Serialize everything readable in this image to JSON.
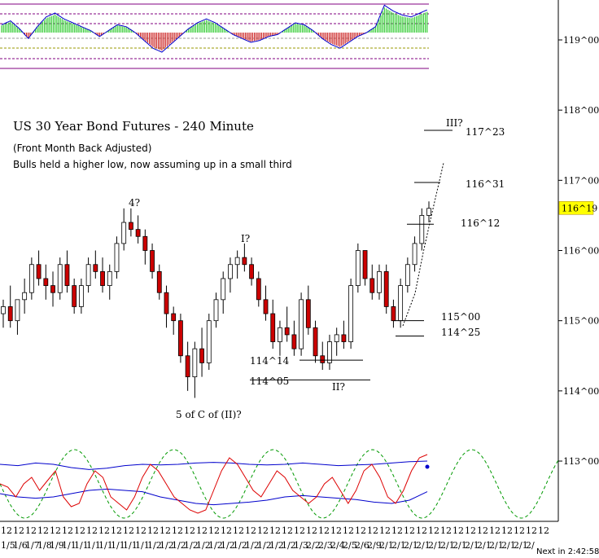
{
  "chart_data": {
    "type": "candlestick",
    "title": "US 30 Year Bond Futures - 240 Minute",
    "subtitle": "(Front Month Back Adjusted)",
    "commentary": "Bulls held a higher low, now assuming up in a small third",
    "y_axis": {
      "ticks": [
        "119^00",
        "118^00",
        "117^00",
        "116^00",
        "115^00",
        "114^00",
        "113^00"
      ],
      "tick_values": [
        119,
        118,
        117,
        116,
        115,
        114,
        113
      ],
      "ylim": [
        112.1,
        120.0
      ],
      "current_price_label": "116^19",
      "current_price": 116.594
    },
    "x_axis": {
      "month_labels": [
        "12",
        "12",
        "12",
        "12",
        "12",
        "12",
        "12",
        "12",
        "12",
        "12",
        "12",
        "12",
        "12",
        "12",
        "12",
        "12",
        "12",
        "12",
        "12",
        "12",
        "12",
        "12",
        "12",
        "12",
        "12",
        "12",
        "12",
        "12",
        "12",
        "12",
        "12",
        "12",
        "12",
        "12",
        "12",
        "12",
        "12",
        "12",
        "12",
        "12",
        "12",
        "12",
        "12",
        "12",
        "12"
      ],
      "day_labels": [
        "1/5",
        "1/6",
        "1/7",
        "1/8",
        "1/9",
        "1/1",
        "1/1",
        "1/1",
        "1/1",
        "1/1",
        "1/1",
        "1/1",
        "1/2",
        "1/2",
        "1/2",
        "1/2",
        "1/2",
        "1/2",
        "1/2",
        "1/2",
        "1/2",
        "1/2",
        "1/2",
        "1/2",
        "1/3",
        "2/2",
        "2/3",
        "2/4",
        "2/5",
        "2/6",
        "2/9",
        "2/1",
        "2/1",
        "2/1",
        "2/1",
        "2/1",
        "2/1",
        "2/1",
        "2/1",
        "2/1",
        "2/1",
        "2/1",
        "2/1",
        "2/"
      ],
      "status_text": "Next in 2:42:58"
    },
    "price_series": {
      "name": "OHLC",
      "candles": [
        [
          115.1,
          115.3,
          114.9,
          115.2
        ],
        [
          115.2,
          115.5,
          114.9,
          115.0
        ],
        [
          115.0,
          115.3,
          114.8,
          115.3
        ],
        [
          115.3,
          115.6,
          115.1,
          115.4
        ],
        [
          115.4,
          115.9,
          115.3,
          115.8
        ],
        [
          115.8,
          116.0,
          115.5,
          115.6
        ],
        [
          115.6,
          115.8,
          115.3,
          115.5
        ],
        [
          115.5,
          115.7,
          115.2,
          115.4
        ],
        [
          115.4,
          115.9,
          115.3,
          115.8
        ],
        [
          115.8,
          116.0,
          115.4,
          115.5
        ],
        [
          115.5,
          115.6,
          115.1,
          115.2
        ],
        [
          115.2,
          115.6,
          115.1,
          115.5
        ],
        [
          115.5,
          115.9,
          115.4,
          115.8
        ],
        [
          115.8,
          116.0,
          115.6,
          115.7
        ],
        [
          115.7,
          115.9,
          115.4,
          115.5
        ],
        [
          115.5,
          115.8,
          115.3,
          115.7
        ],
        [
          115.7,
          116.2,
          115.6,
          116.1
        ],
        [
          116.1,
          116.6,
          116.0,
          116.4
        ],
        [
          116.4,
          116.6,
          116.2,
          116.3
        ],
        [
          116.3,
          116.5,
          116.1,
          116.2
        ],
        [
          116.2,
          116.3,
          115.8,
          116.0
        ],
        [
          116.0,
          116.1,
          115.6,
          115.7
        ],
        [
          115.7,
          115.8,
          115.3,
          115.4
        ],
        [
          115.4,
          115.5,
          114.9,
          115.1
        ],
        [
          115.1,
          115.2,
          114.8,
          115.0
        ],
        [
          115.0,
          115.1,
          114.4,
          114.5
        ],
        [
          114.5,
          114.7,
          114.0,
          114.2
        ],
        [
          114.2,
          114.7,
          113.9,
          114.6
        ],
        [
          114.6,
          114.9,
          114.2,
          114.4
        ],
        [
          114.4,
          115.1,
          114.3,
          115.0
        ],
        [
          115.0,
          115.4,
          114.9,
          115.3
        ],
        [
          115.3,
          115.7,
          115.1,
          115.6
        ],
        [
          115.6,
          115.9,
          115.4,
          115.8
        ],
        [
          115.8,
          116.0,
          115.6,
          115.9
        ],
        [
          115.9,
          116.1,
          115.7,
          115.8
        ],
        [
          115.8,
          115.9,
          115.5,
          115.6
        ],
        [
          115.6,
          115.7,
          115.2,
          115.3
        ],
        [
          115.3,
          115.5,
          115.0,
          115.1
        ],
        [
          115.1,
          115.3,
          114.6,
          114.7
        ],
        [
          114.7,
          115.0,
          114.5,
          114.9
        ],
        [
          114.9,
          115.2,
          114.7,
          114.8
        ],
        [
          114.8,
          115.0,
          114.5,
          114.6
        ],
        [
          114.6,
          115.4,
          114.5,
          115.3
        ],
        [
          115.3,
          115.5,
          114.8,
          114.9
        ],
        [
          114.9,
          115.0,
          114.4,
          114.5
        ],
        [
          114.5,
          114.7,
          114.3,
          114.4
        ],
        [
          114.4,
          114.8,
          114.3,
          114.7
        ],
        [
          114.7,
          114.9,
          114.5,
          114.8
        ],
        [
          114.8,
          115.0,
          114.6,
          114.7
        ],
        [
          114.7,
          115.6,
          114.6,
          115.5
        ],
        [
          115.5,
          116.1,
          115.4,
          116.0
        ],
        [
          116.0,
          116.0,
          115.5,
          115.6
        ],
        [
          115.6,
          115.8,
          115.3,
          115.4
        ],
        [
          115.4,
          115.8,
          115.3,
          115.7
        ],
        [
          115.7,
          115.8,
          115.1,
          115.2
        ],
        [
          115.2,
          115.3,
          114.9,
          115.0
        ],
        [
          115.0,
          115.6,
          114.9,
          115.5
        ],
        [
          115.5,
          115.9,
          115.4,
          115.8
        ],
        [
          115.8,
          116.2,
          115.7,
          116.1
        ],
        [
          116.1,
          116.6,
          116.0,
          116.5
        ],
        [
          116.5,
          116.7,
          116.4,
          116.6
        ]
      ]
    },
    "wave_labels": [
      "4?",
      "I?",
      "5 of C of (II)?",
      "II?",
      "III?"
    ],
    "price_levels": [
      {
        "label": "117^23",
        "value": 117.719
      },
      {
        "label": "116^31",
        "value": 116.969
      },
      {
        "label": "116^12",
        "value": 116.375
      },
      {
        "label": "115^00",
        "value": 115.0
      },
      {
        "label": "114^25",
        "value": 114.781
      },
      {
        "label": "114^14",
        "value": 114.4375
      },
      {
        "label": "114^05",
        "value": 114.156
      }
    ],
    "top_oscillator": {
      "name": "Momentum histogram",
      "values": [
        0.4,
        0.6,
        0.2,
        -0.3,
        0.3,
        0.8,
        1.0,
        0.7,
        0.5,
        0.3,
        0.1,
        -0.2,
        0.1,
        0.4,
        0.3,
        0.0,
        -0.4,
        -0.8,
        -1.0,
        -0.6,
        -0.2,
        0.2,
        0.5,
        0.7,
        0.5,
        0.2,
        -0.1,
        -0.3,
        -0.5,
        -0.4,
        -0.2,
        -0.1,
        0.2,
        0.5,
        0.4,
        0.1,
        -0.3,
        -0.6,
        -0.8,
        -0.5,
        -0.2,
        0.0,
        0.3,
        1.4,
        1.1,
        0.9,
        0.8,
        1.0,
        1.2
      ]
    },
    "bottom_oscillator": {
      "name": "Cycle oscillator",
      "cycle_period_bars": 14,
      "cycle_phase": 0.25,
      "stochastic_values": [
        0.5,
        0.45,
        0.3,
        0.5,
        0.6,
        0.4,
        0.55,
        0.7,
        0.3,
        0.15,
        0.2,
        0.5,
        0.7,
        0.6,
        0.3,
        0.2,
        0.1,
        0.3,
        0.6,
        0.8,
        0.7,
        0.5,
        0.3,
        0.2,
        0.1,
        0.05,
        0.1,
        0.4,
        0.7,
        0.9,
        0.8,
        0.6,
        0.4,
        0.3,
        0.5,
        0.7,
        0.6,
        0.4,
        0.3,
        0.2,
        0.3,
        0.5,
        0.6,
        0.4,
        0.2,
        0.4,
        0.7,
        0.8,
        0.6,
        0.3,
        0.2,
        0.4,
        0.7,
        0.9,
        0.95
      ],
      "upper_band": [
        0.8,
        0.78,
        0.82,
        0.8,
        0.75,
        0.72,
        0.74,
        0.78,
        0.8,
        0.79,
        0.8,
        0.82,
        0.83,
        0.82,
        0.8,
        0.79,
        0.8,
        0.82,
        0.8,
        0.78,
        0.79,
        0.8,
        0.82,
        0.84,
        0.85
      ],
      "lower_band": [
        0.35,
        0.3,
        0.28,
        0.3,
        0.35,
        0.4,
        0.42,
        0.4,
        0.38,
        0.3,
        0.25,
        0.2,
        0.18,
        0.2,
        0.22,
        0.25,
        0.3,
        0.32,
        0.3,
        0.28,
        0.26,
        0.22,
        0.2,
        0.25,
        0.38
      ]
    }
  }
}
